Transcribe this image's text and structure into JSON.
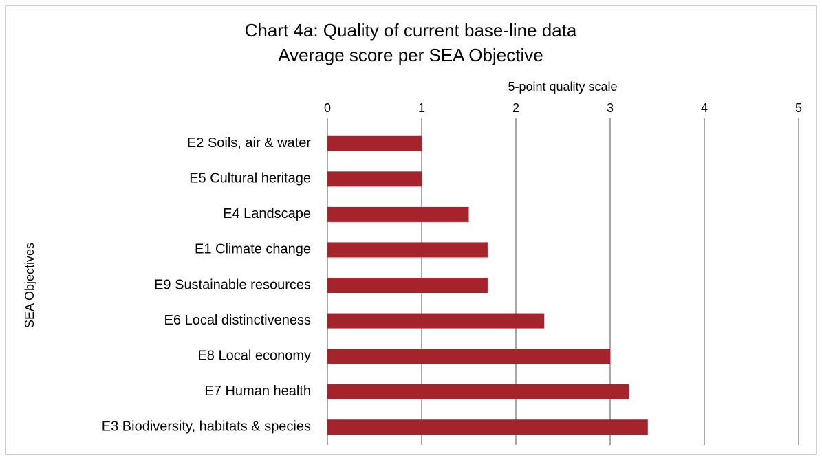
{
  "chart_data": {
    "type": "bar",
    "orientation": "horizontal",
    "title": "Chart 4a: Quality of current base-line data",
    "subtitle": "Average score per SEA Objective",
    "x_label": "5-point quality scale",
    "y_label": "SEA Objectives",
    "categories": [
      "E2 Soils, air & water",
      "E5 Cultural heritage",
      "E4 Landscape",
      "E1 Climate change",
      "E9 Sustainable resources",
      "E6 Local distinctiveness",
      "E8 Local economy",
      "E7 Human health",
      "E3 Biodiversity, habitats & species"
    ],
    "values": [
      1.0,
      1.0,
      1.5,
      1.7,
      1.7,
      2.3,
      3.0,
      3.2,
      3.4
    ],
    "color": "#a5232b",
    "xlim": [
      0,
      5
    ],
    "xticks": [
      0,
      1,
      2,
      3,
      4,
      5
    ],
    "grid": true
  }
}
